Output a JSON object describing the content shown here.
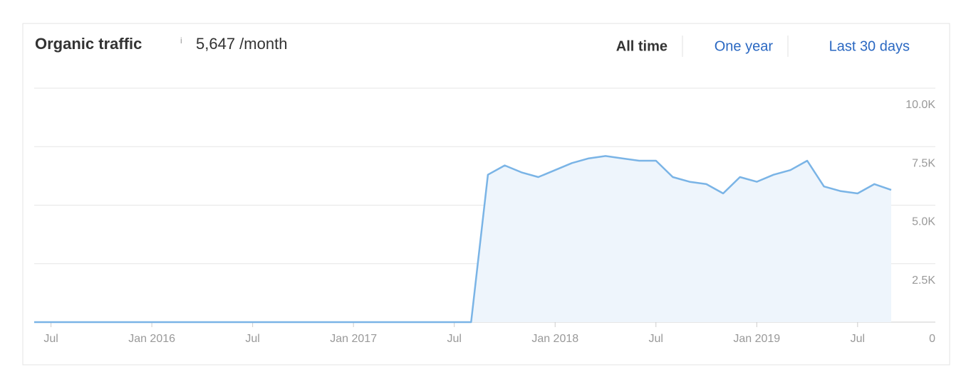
{
  "header": {
    "title": "Organic traffic",
    "info": "i",
    "value": "5,647 /month"
  },
  "tabs": [
    {
      "label": "All time",
      "active": true
    },
    {
      "label": "One year",
      "active": false
    },
    {
      "label": "Last 30 days",
      "active": false
    }
  ],
  "chart_data": {
    "type": "area",
    "color": "#7ab4e6",
    "fill_color": "#eef5fc",
    "grid": true,
    "x": [
      "2015-06",
      "2015-07",
      "2015-08",
      "2015-09",
      "2015-10",
      "2015-11",
      "2015-12",
      "2016-01",
      "2016-02",
      "2016-03",
      "2016-04",
      "2016-05",
      "2016-06",
      "2016-07",
      "2016-08",
      "2016-09",
      "2016-10",
      "2016-11",
      "2016-12",
      "2017-01",
      "2017-02",
      "2017-03",
      "2017-04",
      "2017-05",
      "2017-06",
      "2017-07",
      "2017-08",
      "2017-09",
      "2017-10",
      "2017-11",
      "2017-12",
      "2018-01",
      "2018-02",
      "2018-03",
      "2018-04",
      "2018-05",
      "2018-06",
      "2018-07",
      "2018-08",
      "2018-09",
      "2018-10",
      "2018-11",
      "2018-12",
      "2019-01",
      "2019-02",
      "2019-03",
      "2019-04",
      "2019-05",
      "2019-06",
      "2019-07",
      "2019-08",
      "2019-09"
    ],
    "values": [
      0,
      0,
      0,
      0,
      0,
      0,
      0,
      0,
      0,
      0,
      0,
      0,
      0,
      0,
      0,
      0,
      0,
      0,
      0,
      0,
      0,
      0,
      0,
      0,
      0,
      0,
      0,
      6300,
      6700,
      6400,
      6200,
      6500,
      6800,
      7000,
      7100,
      7000,
      6900,
      6900,
      6200,
      6000,
      5900,
      5500,
      6200,
      6000,
      6300,
      6500,
      6900,
      5800,
      5600,
      5500,
      5900,
      5650
    ],
    "xlim": [
      "2015-06",
      "2019-09"
    ],
    "xticks": [
      {
        "value": "2015-07",
        "label": "Jul"
      },
      {
        "value": "2016-01",
        "label": "Jan 2016"
      },
      {
        "value": "2016-07",
        "label": "Jul"
      },
      {
        "value": "2017-01",
        "label": "Jan 2017"
      },
      {
        "value": "2017-07",
        "label": "Jul"
      },
      {
        "value": "2018-01",
        "label": "Jan 2018"
      },
      {
        "value": "2018-07",
        "label": "Jul"
      },
      {
        "value": "2019-01",
        "label": "Jan 2019"
      },
      {
        "value": "2019-07",
        "label": "Jul"
      }
    ],
    "ylim": [
      0,
      10000
    ],
    "yticks": [
      0,
      {
        "value": 2500,
        "label": "2.5K"
      },
      {
        "value": 5000,
        "label": "5.0K"
      },
      {
        "value": 7500,
        "label": "7.5K"
      },
      {
        "value": 10000,
        "label": "10.0K"
      }
    ]
  }
}
